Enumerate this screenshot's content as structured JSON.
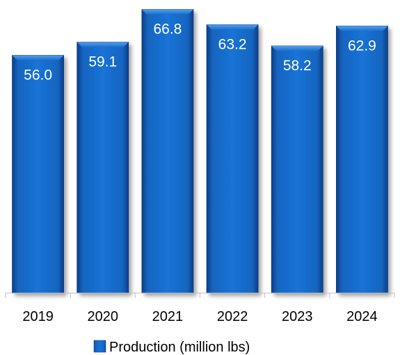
{
  "chart_data": {
    "type": "bar",
    "categories": [
      "2019",
      "2020",
      "2021",
      "2022",
      "2023",
      "2024"
    ],
    "series": [
      {
        "name": "Production (million lbs)",
        "values": [
          56.0,
          59.1,
          66.8,
          63.2,
          58.2,
          62.9
        ]
      }
    ],
    "data_labels": [
      "56.0",
      "59.1",
      "66.8",
      "63.2",
      "58.2",
      "62.9"
    ],
    "legend_position": "bottom",
    "grid": false,
    "colors": {
      "bar": "#1565c0",
      "bar_light": "#2e86de",
      "bar_dark": "#0d3f8a"
    }
  }
}
